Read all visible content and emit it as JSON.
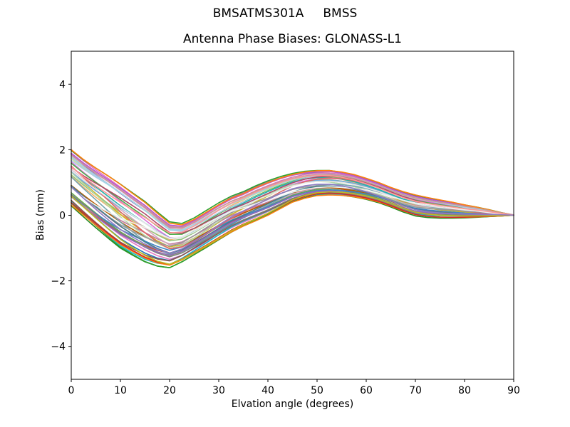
{
  "figure": {
    "background": "#ffffff",
    "text_color": "#000000",
    "spine_color": "#000000"
  },
  "chart_data": {
    "type": "line",
    "suptitle": "BMSATMS301A     BMSS",
    "title": "Antenna Phase Biases: GLONASS-L1",
    "xlabel": "Elvation angle (degrees)",
    "ylabel": "Bias (mm)",
    "xlim": [
      0,
      90
    ],
    "ylim": [
      -5,
      5
    ],
    "xticks": [
      0,
      10,
      20,
      30,
      40,
      50,
      60,
      70,
      80,
      90
    ],
    "yticks": [
      -4,
      -2,
      0,
      2,
      4
    ],
    "grid": false,
    "legend": null,
    "n_series": 46,
    "note": "Bundle of ~46 unlabeled per-satellite phase-bias curves. All curves dip to a minimum near 17-20 deg elevation, rise to a local maximum near 50 deg, and converge to 0 mm at 90 deg. Band captured by upper/lower envelopes (mm) sampled every 2.5 deg.",
    "x": [
      0,
      2.5,
      5,
      7.5,
      10,
      12.5,
      15,
      17.5,
      20,
      22.5,
      25,
      27.5,
      30,
      32.5,
      35,
      37.5,
      40,
      42.5,
      45,
      47.5,
      50,
      52.5,
      55,
      57.5,
      60,
      62.5,
      65,
      67.5,
      70,
      72.5,
      75,
      77.5,
      80,
      82.5,
      85,
      87.5,
      90
    ],
    "upper": [
      2.0,
      1.7,
      1.44,
      1.2,
      0.95,
      0.68,
      0.42,
      0.1,
      -0.2,
      -0.25,
      -0.08,
      0.15,
      0.38,
      0.58,
      0.72,
      0.9,
      1.05,
      1.18,
      1.28,
      1.35,
      1.38,
      1.38,
      1.33,
      1.25,
      1.13,
      1.0,
      0.85,
      0.72,
      0.62,
      0.54,
      0.47,
      0.4,
      0.32,
      0.25,
      0.17,
      0.08,
      0.01
    ],
    "lower": [
      0.28,
      -0.05,
      -0.38,
      -0.7,
      -1.0,
      -1.22,
      -1.42,
      -1.55,
      -1.6,
      -1.42,
      -1.2,
      -0.98,
      -0.75,
      -0.52,
      -0.33,
      -0.17,
      0.0,
      0.2,
      0.4,
      0.52,
      0.6,
      0.62,
      0.6,
      0.55,
      0.48,
      0.38,
      0.25,
      0.1,
      -0.02,
      -0.07,
      -0.09,
      -0.09,
      -0.08,
      -0.06,
      -0.04,
      -0.02,
      0.0
    ],
    "palette": [
      "#228b22",
      "#ff7f0e",
      "#2ca02c",
      "#d62728",
      "#17becf",
      "#bcbd22",
      "#8c564b",
      "#e377c2",
      "#7f7f7f",
      "#1f77b4",
      "#9467bd",
      "#6aa84f",
      "#cc4125",
      "#3d85c6",
      "#a64d79",
      "#45818e",
      "#b45f06",
      "#8e7cc3",
      "#76a5af",
      "#c27ba0",
      "#999999",
      "#d5a6bd",
      "#f0f0f0",
      "#b6d7a8",
      "#cdb41e",
      "#e06666",
      "#93c47d",
      "#e8e8e8",
      "#6fa8dc",
      "#f6b26b",
      "#20b2aa",
      "#da70d6",
      "#b04a68",
      "#4daf4a",
      "#ff9896",
      "#aec7e8",
      "#dbdb8d",
      "#9edae5",
      "#c5b0d5",
      "#c49c94",
      "#d977b5",
      "#9467bd",
      "#ba55d3",
      "#e377c2",
      "#ff7f0e",
      "#2ca02c"
    ]
  }
}
